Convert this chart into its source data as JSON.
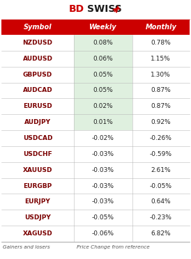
{
  "header": [
    "Symbol",
    "Weekly",
    "Monthly"
  ],
  "rows": [
    [
      "NZDUSD",
      "0.08%",
      "0.78%"
    ],
    [
      "AUDUSD",
      "0.06%",
      "1.15%"
    ],
    [
      "GBPUSD",
      "0.05%",
      "1.30%"
    ],
    [
      "AUDCAD",
      "0.05%",
      "0.87%"
    ],
    [
      "EURUSD",
      "0.02%",
      "0.87%"
    ],
    [
      "AUDJPY",
      "0.01%",
      "0.92%"
    ],
    [
      "USDCAD",
      "-0.02%",
      "-0.26%"
    ],
    [
      "USDCHF",
      "-0.03%",
      "-0.59%"
    ],
    [
      "XAUUSD",
      "-0.03%",
      "2.61%"
    ],
    [
      "EURGBP",
      "-0.03%",
      "-0.05%"
    ],
    [
      "EURJPY",
      "-0.03%",
      "0.64%"
    ],
    [
      "USDJPY",
      "-0.05%",
      "-0.23%"
    ],
    [
      "XAGUSD",
      "-0.06%",
      "6.82%"
    ]
  ],
  "positive_bg": "#dff0df",
  "header_bg": "#cc0000",
  "header_text_color": "#ffffff",
  "symbol_text_color": "#7a0000",
  "value_text_color": "#222222",
  "row_line_color": "#bbbbbb",
  "footer_left": "Gainers and losers",
  "footer_right": "Price Change from reference",
  "background_color": "#ffffff",
  "logo_bd_color": "#cc0000",
  "logo_swiss_color": "#1a1a1a",
  "logo_arrow_color": "#cc0000"
}
